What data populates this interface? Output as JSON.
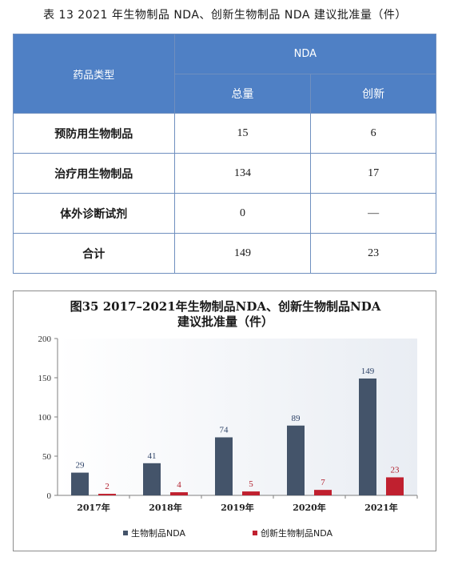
{
  "table": {
    "caption": "表 13   2021 年生物制品 NDA、创新生物制品 NDA 建议批准量（件）",
    "col_type_header": "药品类型",
    "col_group_header": "NDA",
    "col_total_header": "总量",
    "col_innov_header": "创新",
    "rows": [
      {
        "type": "预防用生物制品",
        "total": "15",
        "innov": "6"
      },
      {
        "type": "治疗用生物制品",
        "total": "134",
        "innov": "17"
      },
      {
        "type": "体外诊断试剂",
        "total": "0",
        "innov": "—"
      },
      {
        "type": "合计",
        "total": "149",
        "innov": "23"
      }
    ]
  },
  "chart_data": {
    "type": "bar",
    "title": "图35  2017–2021年生物制品NDA、创新生物制品NDA",
    "subtitle": "建议批准量（件）",
    "categories": [
      "2017年",
      "2018年",
      "2019年",
      "2020年",
      "2021年"
    ],
    "series": [
      {
        "name": "生物制品NDA",
        "color": "#44546a",
        "label_color": "#2f4468",
        "values": [
          29,
          41,
          74,
          89,
          149
        ]
      },
      {
        "name": "创新生物制品NDA",
        "color": "#c0202f",
        "label_color": "#b01e2c",
        "values": [
          2,
          4,
          5,
          7,
          23
        ]
      }
    ],
    "yticks": [
      "0",
      "50",
      "100",
      "150",
      "200"
    ],
    "ylim": [
      0,
      200
    ],
    "grid": false,
    "legend_position": "bottom"
  }
}
